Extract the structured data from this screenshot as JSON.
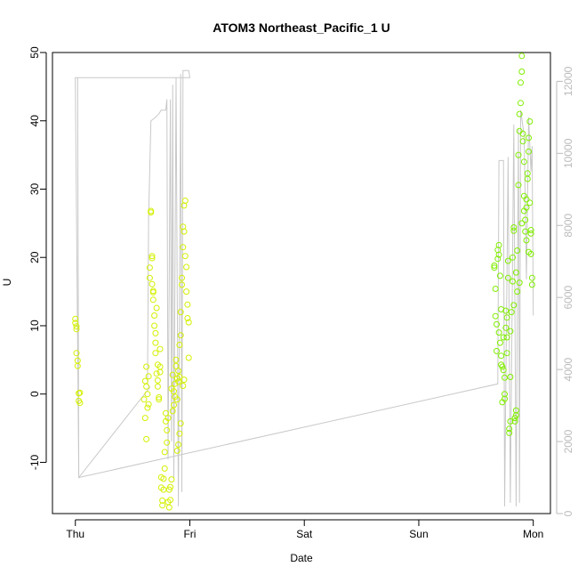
{
  "chart_data": {
    "type": "scatter",
    "title": "ATOM3 Northeast_Pacific_1 U",
    "xlabel": "Date",
    "ylabel": "U",
    "x_ticks": [
      "Thu",
      "Fri",
      "Sat",
      "Sun",
      "Mon"
    ],
    "y_ticks": [
      -10,
      0,
      10,
      20,
      30,
      40,
      50
    ],
    "y_right_ticks": [
      0,
      2000,
      4000,
      6000,
      8000,
      10000,
      12000
    ],
    "ylim": [
      -17.5,
      50
    ],
    "y_right_lim": [
      0,
      12800
    ],
    "x_range_days": [
      -0.2,
      4.15
    ],
    "grid": false,
    "colors": {
      "points_early": "#d4f000",
      "points_late": "#80ee00",
      "line": "#c8c8c8",
      "right_axis": "#bbbbbb",
      "axis": "#000000"
    },
    "series": [
      {
        "kind": "line",
        "axis": "right",
        "points": [
          [
            0.0,
            12100
          ],
          [
            0.01,
            12100
          ],
          [
            0.02,
            12100
          ],
          [
            0.03,
            1000
          ],
          [
            0.65,
            3500
          ],
          [
            0.63,
            3600
          ],
          [
            0.64,
            8200
          ],
          [
            0.66,
            10900
          ],
          [
            0.7,
            11000
          ],
          [
            0.73,
            11100
          ],
          [
            0.75,
            11200
          ],
          [
            0.79,
            11200
          ],
          [
            0.8,
            11500
          ],
          [
            0.8,
            11500
          ],
          [
            0.81,
            1500
          ],
          [
            0.83,
            11500
          ],
          [
            0.84,
            2000
          ],
          [
            0.85,
            11900
          ],
          [
            0.86,
            1000
          ],
          [
            0.88,
            12100
          ],
          [
            0.9,
            200
          ],
          [
            0.92,
            12200
          ],
          [
            0.93,
            600
          ],
          [
            0.94,
            12300
          ],
          [
            0.97,
            12300
          ],
          [
            0.99,
            12300
          ],
          [
            1.0,
            12100
          ],
          [
            0.0,
            12100
          ],
          [
            0.03,
            1000
          ],
          [
            3.69,
            3600
          ],
          [
            3.7,
            9800
          ],
          [
            3.74,
            9800
          ],
          [
            3.75,
            200
          ],
          [
            3.78,
            9900
          ],
          [
            3.8,
            300
          ],
          [
            3.83,
            10800
          ],
          [
            3.85,
            200
          ],
          [
            3.87,
            10700
          ],
          [
            3.88,
            300
          ],
          [
            3.89,
            11200
          ],
          [
            3.92,
            10500
          ],
          [
            3.94,
            6500
          ],
          [
            3.96,
            11000
          ],
          [
            3.98,
            9500
          ],
          [
            3.99,
            10200
          ],
          [
            4.0,
            5500
          ]
        ]
      },
      {
        "kind": "points",
        "axis": "left",
        "color": "#d4f000",
        "points": [
          [
            0.0,
            11.0
          ],
          [
            0.0,
            10.4
          ],
          [
            0.01,
            9.5
          ],
          [
            0.01,
            9.9
          ],
          [
            0.01,
            6.0
          ],
          [
            0.02,
            4.9
          ],
          [
            0.02,
            4.1
          ],
          [
            0.03,
            0.1
          ],
          [
            0.03,
            -1.0
          ],
          [
            0.04,
            0.2
          ],
          [
            0.04,
            -1.3
          ],
          [
            0.6,
            -0.8
          ],
          [
            0.61,
            1.9
          ],
          [
            0.61,
            -3.5
          ],
          [
            0.62,
            4.0
          ],
          [
            0.62,
            1.1
          ],
          [
            0.62,
            -6.6
          ],
          [
            0.63,
            0.0
          ],
          [
            0.63,
            -2.0
          ],
          [
            0.64,
            2.6
          ],
          [
            0.64,
            -1.5
          ],
          [
            0.65,
            17.0
          ],
          [
            0.65,
            18.5
          ],
          [
            0.66,
            26.6
          ],
          [
            0.66,
            26.8
          ],
          [
            0.67,
            16.1
          ],
          [
            0.67,
            19.9
          ],
          [
            0.67,
            20.2
          ],
          [
            0.68,
            15.1
          ],
          [
            0.68,
            14.9
          ],
          [
            0.69,
            10.0
          ],
          [
            0.7,
            8.9
          ],
          [
            0.7,
            6.0
          ],
          [
            0.71,
            12.6
          ],
          [
            0.71,
            3.0
          ],
          [
            0.72,
            2.0
          ],
          [
            0.72,
            1.1
          ],
          [
            0.73,
            -0.5
          ],
          [
            0.73,
            -0.8
          ],
          [
            0.74,
            4.0
          ],
          [
            0.74,
            6.6
          ],
          [
            0.75,
            -12.2
          ],
          [
            0.75,
            -13.7
          ],
          [
            0.76,
            -16.3
          ],
          [
            0.76,
            -15.6
          ],
          [
            0.77,
            -12.4
          ],
          [
            0.77,
            -14.0
          ],
          [
            0.78,
            -10.9
          ],
          [
            0.78,
            -8.5
          ],
          [
            0.79,
            -4.0
          ],
          [
            0.79,
            -2.8
          ],
          [
            0.8,
            -5.3
          ],
          [
            0.8,
            -7.1
          ],
          [
            0.81,
            -3.5
          ],
          [
            0.81,
            -15.8
          ],
          [
            0.82,
            -16.6
          ],
          [
            0.82,
            -14.0
          ],
          [
            0.83,
            -13.6
          ],
          [
            0.83,
            -15.5
          ],
          [
            0.84,
            -12.5
          ],
          [
            0.84,
            0.8
          ],
          [
            0.85,
            -2.5
          ],
          [
            0.85,
            2.8
          ],
          [
            0.86,
            0.4
          ],
          [
            0.86,
            -1.6
          ],
          [
            0.87,
            -0.4
          ],
          [
            0.87,
            1.5
          ],
          [
            0.88,
            5.0
          ],
          [
            0.88,
            4.1
          ],
          [
            0.89,
            2.3
          ],
          [
            0.89,
            -0.8
          ],
          [
            0.9,
            1.8
          ],
          [
            0.9,
            3.4
          ],
          [
            0.91,
            2.5
          ],
          [
            0.91,
            7.2
          ],
          [
            0.92,
            8.6
          ],
          [
            0.92,
            12.0
          ],
          [
            0.93,
            16.0
          ],
          [
            0.93,
            17.0
          ],
          [
            0.94,
            21.5
          ],
          [
            0.94,
            24.5
          ],
          [
            0.95,
            23.8
          ],
          [
            0.95,
            27.6
          ],
          [
            0.96,
            28.3
          ],
          [
            0.96,
            20.2
          ],
          [
            0.97,
            18.6
          ],
          [
            0.97,
            15.0
          ],
          [
            0.98,
            13.1
          ],
          [
            0.98,
            11.1
          ],
          [
            0.99,
            10.5
          ],
          [
            0.99,
            5.3
          ],
          [
            0.95,
            2.1
          ],
          [
            0.94,
            1.2
          ],
          [
            0.92,
            -4.3
          ],
          [
            0.91,
            -5.8
          ],
          [
            0.9,
            -7.4
          ],
          [
            0.89,
            -8.3
          ],
          [
            0.68,
            13.8
          ],
          [
            0.69,
            11.5
          ],
          [
            0.7,
            7.5
          ],
          [
            0.72,
            4.3
          ],
          [
            0.74,
            3.2
          ]
        ]
      },
      {
        "kind": "points",
        "axis": "left",
        "color": "#80ee00",
        "points": [
          [
            3.66,
            18.5
          ],
          [
            3.66,
            18.8
          ],
          [
            3.67,
            15.4
          ],
          [
            3.67,
            11.4
          ],
          [
            3.68,
            6.3
          ],
          [
            3.68,
            10.2
          ],
          [
            3.69,
            19.8
          ],
          [
            3.69,
            21.1
          ],
          [
            3.7,
            20.4
          ],
          [
            3.7,
            21.8
          ],
          [
            3.71,
            17.3
          ],
          [
            3.72,
            12.4
          ],
          [
            3.72,
            5.6
          ],
          [
            3.73,
            4.0
          ],
          [
            3.73,
            -1.2
          ],
          [
            3.74,
            8.3
          ],
          [
            3.74,
            3.5
          ],
          [
            3.75,
            0.0
          ],
          [
            3.75,
            -0.7
          ],
          [
            3.76,
            9.7
          ],
          [
            3.76,
            12.2
          ],
          [
            3.77,
            11.2
          ],
          [
            3.77,
            8.3
          ],
          [
            3.78,
            17.0
          ],
          [
            3.78,
            19.5
          ],
          [
            3.79,
            -5.1
          ],
          [
            3.79,
            -5.7
          ],
          [
            3.8,
            -4.0
          ],
          [
            3.8,
            2.5
          ],
          [
            3.81,
            12.0
          ],
          [
            3.82,
            16.5
          ],
          [
            3.82,
            20.0
          ],
          [
            3.83,
            23.9
          ],
          [
            3.83,
            24.4
          ],
          [
            3.84,
            -4.0
          ],
          [
            3.84,
            -3.5
          ],
          [
            3.85,
            -3.1
          ],
          [
            3.85,
            -2.4
          ],
          [
            3.86,
            15.0
          ],
          [
            3.86,
            21.0
          ],
          [
            3.87,
            30.6
          ],
          [
            3.87,
            35.0
          ],
          [
            3.88,
            38.5
          ],
          [
            3.88,
            41.0
          ],
          [
            3.89,
            42.6
          ],
          [
            3.89,
            45.6
          ],
          [
            3.9,
            47.2
          ],
          [
            3.9,
            49.5
          ],
          [
            3.91,
            38.1
          ],
          [
            3.91,
            37.0
          ],
          [
            3.92,
            34.0
          ],
          [
            3.92,
            29.0
          ],
          [
            3.93,
            25.5
          ],
          [
            3.93,
            23.8
          ],
          [
            3.94,
            22.5
          ],
          [
            3.94,
            27.3
          ],
          [
            3.95,
            31.5
          ],
          [
            3.95,
            32.3
          ],
          [
            3.96,
            35.5
          ],
          [
            3.96,
            37.5
          ],
          [
            3.97,
            39.9
          ],
          [
            3.97,
            28.0
          ],
          [
            3.98,
            24.0
          ],
          [
            3.98,
            20.5
          ],
          [
            3.99,
            17.0
          ],
          [
            3.99,
            16.0
          ],
          [
            3.7,
            9.0
          ],
          [
            3.71,
            7.5
          ],
          [
            3.72,
            4.3
          ],
          [
            3.75,
            2.4
          ],
          [
            3.77,
            6.0
          ],
          [
            3.8,
            9.2
          ],
          [
            3.83,
            13.0
          ],
          [
            3.85,
            17.8
          ],
          [
            3.88,
            16.3
          ],
          [
            3.9,
            25.0
          ],
          [
            3.92,
            26.8
          ],
          [
            3.94,
            28.5
          ],
          [
            3.96,
            20.8
          ],
          [
            3.98,
            23.5
          ]
        ]
      }
    ]
  }
}
